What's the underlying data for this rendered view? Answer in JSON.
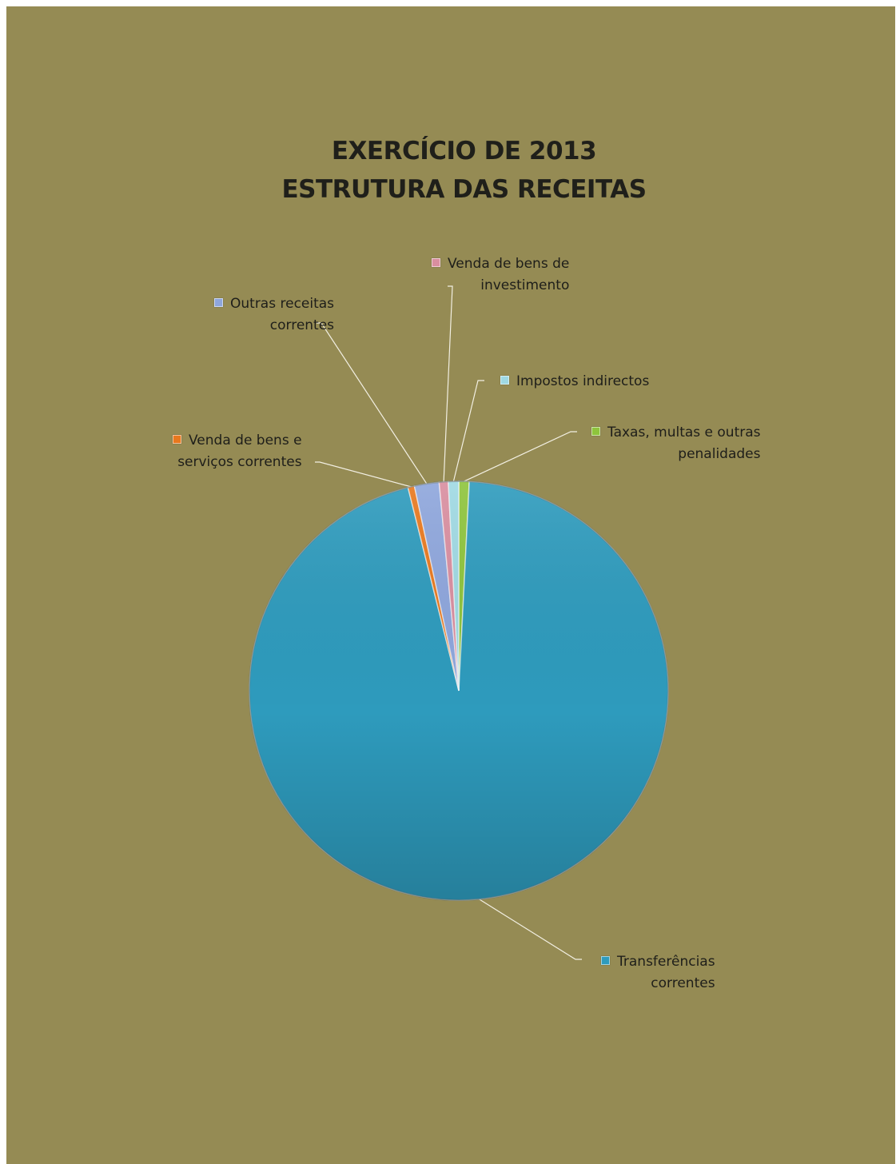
{
  "chart_data": {
    "type": "pie",
    "title": [
      "EXERCÍCIO DE 2013",
      "ESTRUTURA DAS RECEITAS"
    ],
    "legend_position": "labels with leader lines",
    "slices": [
      {
        "name": "Taxas, multas e outras penalidades",
        "label_lines": [
          "Taxas, multas e outras",
          "penalidades"
        ],
        "value": 0.8,
        "color": "#8ec43c"
      },
      {
        "name": "Transferências correntes",
        "label_lines": [
          "Transferências",
          "correntes"
        ],
        "value": 95.3,
        "color": "#2e9bbd"
      },
      {
        "name": "Venda de bens e serviços correntes",
        "label_lines": [
          "Venda de bens e",
          "serviços correntes"
        ],
        "value": 0.5,
        "color": "#e8781e"
      },
      {
        "name": "Outras receitas correntes",
        "label_lines": [
          "Outras receitas",
          "correntes"
        ],
        "value": 1.9,
        "color": "#8ea6dc"
      },
      {
        "name": "Venda de bens de investimento",
        "label_lines": [
          "Venda de bens de",
          "investimento"
        ],
        "value": 0.7,
        "color": "#d98ea0"
      },
      {
        "name": "Impostos indirectos",
        "label_lines": [
          "Impostos indirectos"
        ],
        "value": 0.8,
        "color": "#9fd9e3"
      }
    ]
  }
}
